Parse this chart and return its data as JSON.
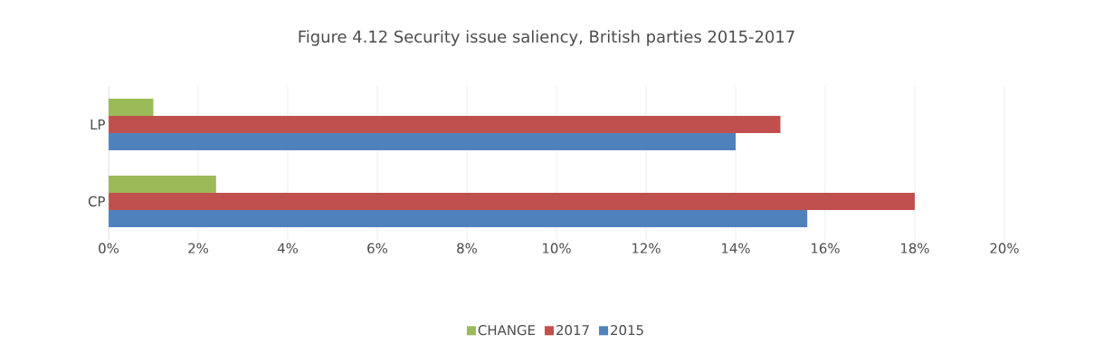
{
  "chart_data": {
    "type": "bar",
    "orientation": "horizontal",
    "title": "Figure 4.12 Security issue saliency, British parties 2015-2017",
    "categories": [
      "LP",
      "CP"
    ],
    "series": [
      {
        "name": "2015",
        "color": "#4f81bd",
        "values": [
          14,
          15.6
        ]
      },
      {
        "name": "2017",
        "color": "#c0504d",
        "values": [
          15,
          18
        ]
      },
      {
        "name": "CHANGE",
        "color": "#9bbb59",
        "values": [
          1,
          2.4
        ]
      }
    ],
    "xlim": [
      0,
      20
    ],
    "xticks": [
      {
        "value": 0,
        "label": "0%"
      },
      {
        "value": 2,
        "label": "2%"
      },
      {
        "value": 4,
        "label": "4%"
      },
      {
        "value": 6,
        "label": "6%"
      },
      {
        "value": 8,
        "label": "8%"
      },
      {
        "value": 10,
        "label": "10%"
      },
      {
        "value": 12,
        "label": "12%"
      },
      {
        "value": 14,
        "label": "14%"
      },
      {
        "value": 16,
        "label": "16%"
      },
      {
        "value": 18,
        "label": "18%"
      },
      {
        "value": 20,
        "label": "20%"
      }
    ],
    "grid": "x",
    "legend": "bottom"
  }
}
